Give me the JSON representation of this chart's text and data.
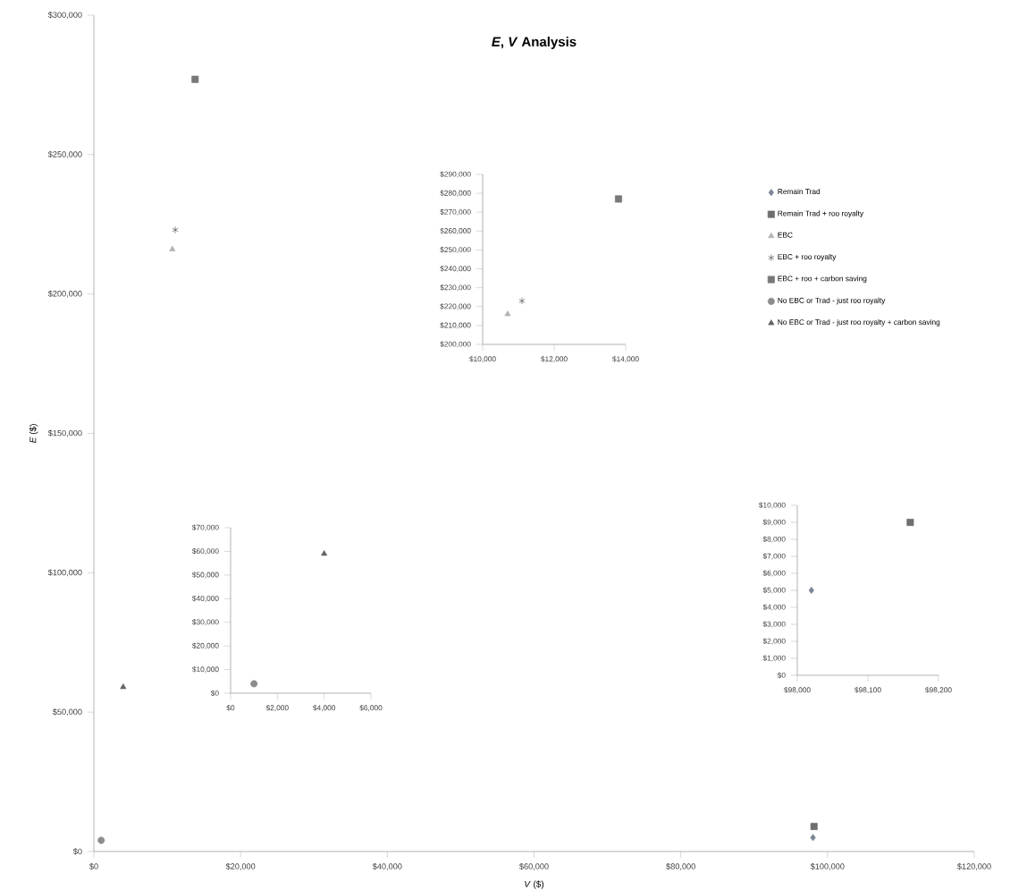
{
  "chart_data": [
    {
      "type": "scatter",
      "title": "*E*, *V* Analysis",
      "xlabel": "*V* ($)",
      "ylabel": "*E* ($)",
      "legend": "right",
      "grid": false,
      "xlim": [
        0,
        120000
      ],
      "ylim": [
        0,
        300000
      ],
      "xticks": [
        {
          "value": 0,
          "label": "$0"
        },
        {
          "value": 20000,
          "label": "$20,000"
        },
        {
          "value": 40000,
          "label": "$40,000"
        },
        {
          "value": 60000,
          "label": "$60,000"
        },
        {
          "value": 80000,
          "label": "$80,000"
        },
        {
          "value": 100000,
          "label": "$100,000"
        },
        {
          "value": 120000,
          "label": "$120,000"
        }
      ],
      "yticks": [
        {
          "value": 0,
          "label": "$0"
        },
        {
          "value": 50000,
          "label": "$50,000"
        },
        {
          "value": 100000,
          "label": "$100,000"
        },
        {
          "value": 150000,
          "label": "$150,000"
        },
        {
          "value": 200000,
          "label": "$200,000"
        },
        {
          "value": 250000,
          "label": "$250,000"
        },
        {
          "value": 300000,
          "label": "$300,000"
        }
      ],
      "series": [
        {
          "name": "Remain Trad",
          "color": "#7a8696",
          "marker": "diamond",
          "x": [
            98020
          ],
          "values": [
            5000
          ]
        },
        {
          "name": "Remain Trad + roo royalty",
          "color": "#6e6e6e",
          "marker": "square",
          "x": [
            98160
          ],
          "values": [
            9000
          ]
        },
        {
          "name": "EBC",
          "color": "#b4b4b4",
          "marker": "triangle",
          "x": [
            10700
          ],
          "values": [
            216000
          ]
        },
        {
          "name": "EBC + roo royalty",
          "color": "#505050",
          "marker": "cross",
          "x": [
            11100
          ],
          "values": [
            223000
          ]
        },
        {
          "name": "EBC + roo + carbon saving",
          "color": "#787878",
          "marker": "square",
          "x": [
            13800
          ],
          "values": [
            277000
          ]
        },
        {
          "name": "No EBC or Trad - just roo royalty",
          "color": "#8c8c8c",
          "marker": "circle",
          "x": [
            1000
          ],
          "values": [
            4000
          ]
        },
        {
          "name": "No EBC or Trad - just roo royalty + carbon saving",
          "color": "#646464",
          "marker": "triangle",
          "x": [
            4000
          ],
          "values": [
            59000
          ]
        }
      ]
    },
    {
      "type": "scatter",
      "xlim": [
        10000,
        14000
      ],
      "ylim": [
        200000,
        290000
      ],
      "xticks": [
        {
          "value": 10000,
          "label": "$10,000"
        },
        {
          "value": 12000,
          "label": "$12,000"
        },
        {
          "value": 14000,
          "label": "$14,000"
        }
      ],
      "yticks": [
        {
          "value": 200000,
          "label": "$200,000"
        },
        {
          "value": 210000,
          "label": "$210,000"
        },
        {
          "value": 220000,
          "label": "$220,000"
        },
        {
          "value": 230000,
          "label": "$230,000"
        },
        {
          "value": 240000,
          "label": "$240,000"
        },
        {
          "value": 250000,
          "label": "$250,000"
        },
        {
          "value": 260000,
          "label": "$260,000"
        },
        {
          "value": 270000,
          "label": "$270,000"
        },
        {
          "value": 280000,
          "label": "$280,000"
        },
        {
          "value": 290000,
          "label": "$290,000"
        }
      ],
      "series": [
        {
          "color": "#b4b4b4",
          "marker": "triangle",
          "x": [
            10700
          ],
          "values": [
            216000
          ]
        },
        {
          "color": "#505050",
          "marker": "cross",
          "x": [
            11100
          ],
          "values": [
            223000
          ]
        },
        {
          "color": "#787878",
          "marker": "square",
          "x": [
            13800
          ],
          "values": [
            277000
          ]
        }
      ]
    },
    {
      "type": "scatter",
      "xlim": [
        0,
        6000
      ],
      "ylim": [
        0,
        70000
      ],
      "xticks": [
        {
          "value": 0,
          "label": "$0"
        },
        {
          "value": 2000,
          "label": "$2,000"
        },
        {
          "value": 4000,
          "label": "$4,000"
        },
        {
          "value": 6000,
          "label": "$6,000"
        }
      ],
      "yticks": [
        {
          "value": 0,
          "label": "$0"
        },
        {
          "value": 10000,
          "label": "$10,000"
        },
        {
          "value": 20000,
          "label": "$20,000"
        },
        {
          "value": 30000,
          "label": "$30,000"
        },
        {
          "value": 40000,
          "label": "$40,000"
        },
        {
          "value": 50000,
          "label": "$50,000"
        },
        {
          "value": 60000,
          "label": "$60,000"
        },
        {
          "value": 70000,
          "label": "$70,000"
        }
      ],
      "series": [
        {
          "color": "#8c8c8c",
          "marker": "circle",
          "x": [
            1000
          ],
          "values": [
            4000
          ]
        },
        {
          "color": "#646464",
          "marker": "triangle",
          "x": [
            4000
          ],
          "values": [
            59000
          ]
        }
      ]
    },
    {
      "type": "scatter",
      "xlim": [
        98000,
        98200
      ],
      "ylim": [
        0,
        10000
      ],
      "xticks": [
        {
          "value": 98000,
          "label": "$98,000"
        },
        {
          "value": 98100,
          "label": "$98,100"
        },
        {
          "value": 98200,
          "label": "$98,200"
        }
      ],
      "yticks": [
        {
          "value": 0,
          "label": "$0"
        },
        {
          "value": 1000,
          "label": "$1,000"
        },
        {
          "value": 2000,
          "label": "$2,000"
        },
        {
          "value": 3000,
          "label": "$3,000"
        },
        {
          "value": 4000,
          "label": "$4,000"
        },
        {
          "value": 5000,
          "label": "$5,000"
        },
        {
          "value": 6000,
          "label": "$6,000"
        },
        {
          "value": 7000,
          "label": "$7,000"
        },
        {
          "value": 8000,
          "label": "$8,000"
        },
        {
          "value": 9000,
          "label": "$9,000"
        },
        {
          "value": 10000,
          "label": "$10,000"
        }
      ],
      "series": [
        {
          "color": "#7a8696",
          "marker": "diamond",
          "x": [
            98020
          ],
          "values": [
            5000
          ]
        },
        {
          "color": "#6e6e6e",
          "marker": "square",
          "x": [
            98160
          ],
          "values": [
            9000
          ]
        }
      ]
    }
  ]
}
